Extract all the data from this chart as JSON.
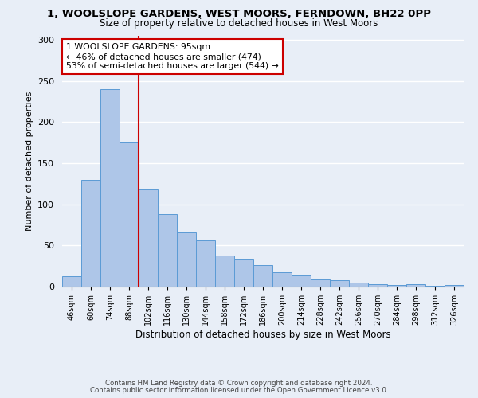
{
  "title1": "1, WOOLSLOPE GARDENS, WEST MOORS, FERNDOWN, BH22 0PP",
  "title2": "Size of property relative to detached houses in West Moors",
  "xlabel": "Distribution of detached houses by size in West Moors",
  "ylabel": "Number of detached properties",
  "categories": [
    "46sqm",
    "60sqm",
    "74sqm",
    "88sqm",
    "102sqm",
    "116sqm",
    "130sqm",
    "144sqm",
    "158sqm",
    "172sqm",
    "186sqm",
    "200sqm",
    "214sqm",
    "228sqm",
    "242sqm",
    "256sqm",
    "270sqm",
    "284sqm",
    "298sqm",
    "312sqm",
    "326sqm"
  ],
  "values": [
    13,
    130,
    240,
    175,
    118,
    88,
    66,
    56,
    38,
    33,
    26,
    17,
    14,
    9,
    8,
    5,
    3,
    2,
    3,
    1,
    2
  ],
  "bar_color": "#aec6e8",
  "bar_edge_color": "#5b9bd5",
  "vline_x": 3.5,
  "vline_color": "#cc0000",
  "annotation_text": "1 WOOLSLOPE GARDENS: 95sqm\n← 46% of detached houses are smaller (474)\n53% of semi-detached houses are larger (544) →",
  "annotation_box_color": "#ffffff",
  "annotation_box_edge_color": "#cc0000",
  "footer1": "Contains HM Land Registry data © Crown copyright and database right 2024.",
  "footer2": "Contains public sector information licensed under the Open Government Licence v3.0.",
  "ylim": [
    0,
    305
  ],
  "background_color": "#e8eef7",
  "grid_color": "#ffffff"
}
